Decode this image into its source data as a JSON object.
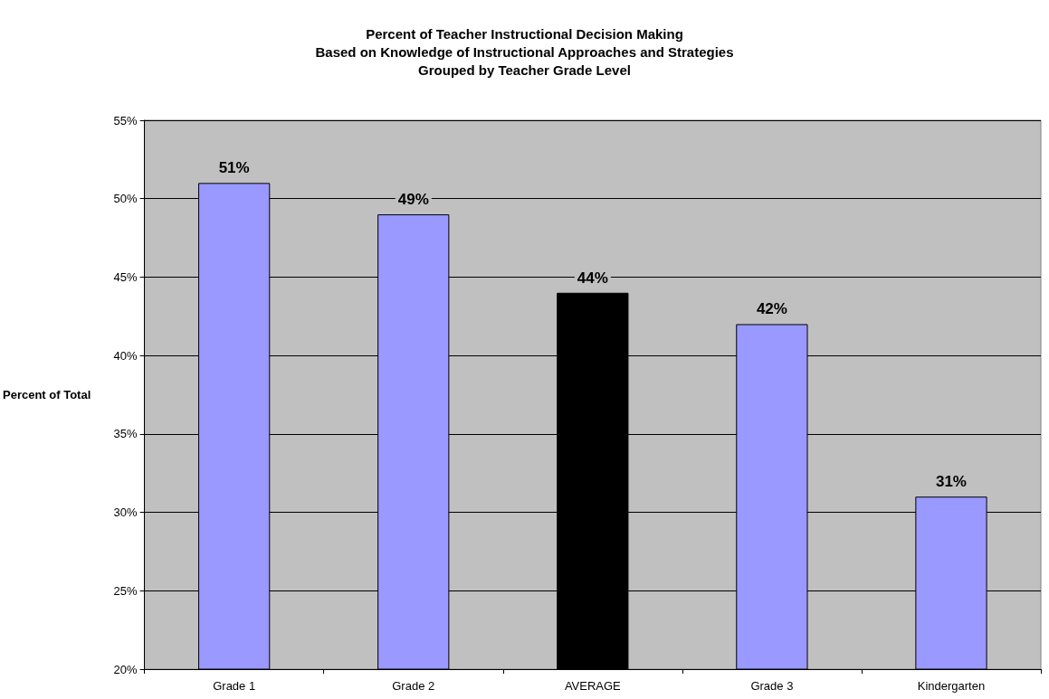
{
  "chart_data": {
    "type": "bar",
    "title": "Percent of Teacher Instructional Decision Making\nBased on Knowledge of Instructional Approaches and Strategies\nGrouped by Teacher Grade Level",
    "ylabel": "Percent of Total",
    "categories": [
      "Grade 1",
      "Grade 2",
      "AVERAGE",
      "Grade 3",
      "Kindergarten"
    ],
    "values": [
      51,
      49,
      44,
      42,
      31
    ],
    "colors": [
      "#9999ff",
      "#9999ff",
      "#000000",
      "#9999ff",
      "#9999ff"
    ],
    "value_labels": [
      "51%",
      "49%",
      "44%",
      "42%",
      "31%"
    ],
    "ylim": [
      20,
      55
    ],
    "yticks": [
      {
        "value": 20,
        "label": "20%"
      },
      {
        "value": 25,
        "label": "25%"
      },
      {
        "value": 30,
        "label": "30%"
      },
      {
        "value": 35,
        "label": "35%"
      },
      {
        "value": 40,
        "label": "40%"
      },
      {
        "value": 45,
        "label": "45%"
      },
      {
        "value": 50,
        "label": "50%"
      },
      {
        "value": 55,
        "label": "55%"
      }
    ],
    "grid": "y"
  }
}
